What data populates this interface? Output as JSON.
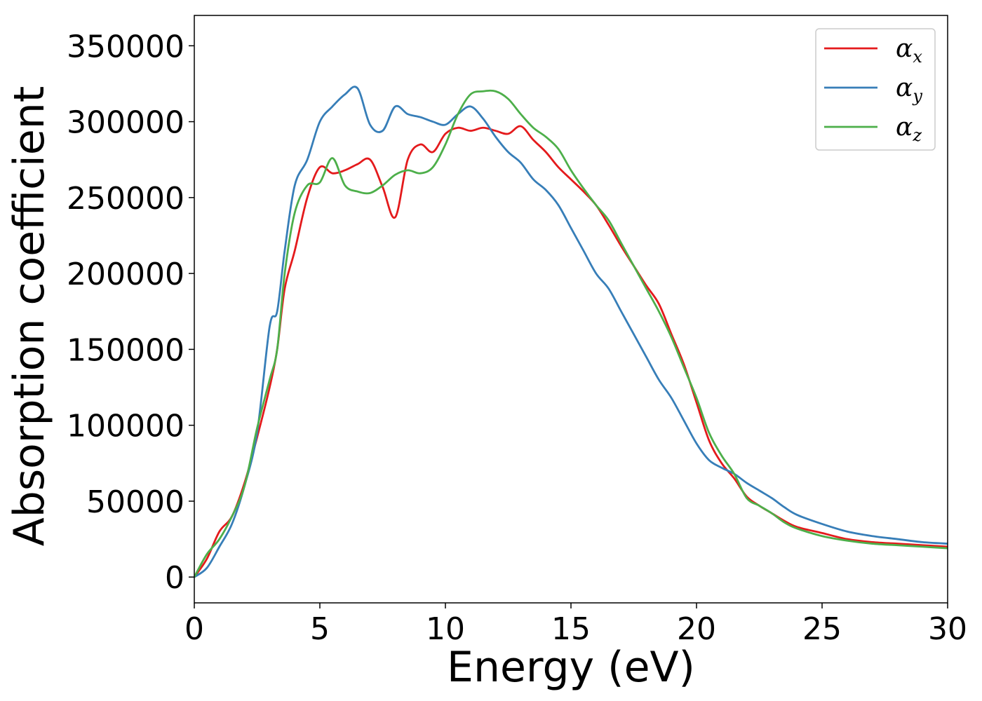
{
  "chart_data": {
    "type": "line",
    "title": "",
    "xlabel": "Energy (eV)",
    "ylabel": "Absorption coefficient",
    "xlim": [
      0,
      30
    ],
    "ylim": [
      -17000,
      370000
    ],
    "xticks": [
      0,
      5,
      10,
      15,
      20,
      25,
      30
    ],
    "xtick_labels": [
      "0",
      "5",
      "10",
      "15",
      "20",
      "25",
      "30"
    ],
    "yticks": [
      0,
      50000,
      100000,
      150000,
      200000,
      250000,
      300000,
      350000
    ],
    "ytick_labels": [
      "0",
      "50000",
      "100000",
      "150000",
      "200000",
      "250000",
      "300000",
      "350000"
    ],
    "grid": false,
    "legend_position": "top-right",
    "x": [
      0,
      0.5,
      1,
      1.5,
      2,
      2.5,
      3,
      3.3,
      3.6,
      4,
      4.5,
      5,
      5.5,
      6,
      6.5,
      7,
      7.5,
      8,
      8.5,
      9,
      9.5,
      10,
      10.5,
      11,
      11.5,
      12,
      12.5,
      13,
      13.5,
      14,
      14.5,
      15,
      15.5,
      16,
      16.5,
      17,
      17.5,
      18,
      18.5,
      19,
      19.5,
      20,
      20.5,
      21,
      21.5,
      22,
      22.5,
      23,
      23.5,
      24,
      25,
      26,
      27,
      28,
      29,
      30
    ],
    "series": [
      {
        "name": "α",
        "subscript": "x",
        "color": "#e41a1c",
        "values": [
          0,
          12000,
          30000,
          40000,
          62000,
          92000,
          125000,
          150000,
          190000,
          215000,
          250000,
          270000,
          266000,
          268000,
          272000,
          275000,
          257000,
          237000,
          275000,
          285000,
          280000,
          292000,
          296000,
          294000,
          296000,
          294000,
          292000,
          297000,
          288000,
          280000,
          270000,
          262000,
          254000,
          245000,
          232000,
          218000,
          205000,
          192000,
          180000,
          160000,
          140000,
          115000,
          90000,
          75000,
          65000,
          53000,
          47000,
          42000,
          37000,
          33000,
          29000,
          25000,
          23000,
          22000,
          21000,
          20000
        ]
      },
      {
        "name": "α",
        "subscript": "y",
        "color": "#377eb8",
        "values": [
          0,
          6000,
          20000,
          35000,
          60000,
          95000,
          165000,
          175000,
          215000,
          258000,
          275000,
          300000,
          310000,
          318000,
          322000,
          298000,
          294000,
          310000,
          305000,
          303000,
          300000,
          298000,
          305000,
          310000,
          302000,
          290000,
          280000,
          273000,
          262000,
          255000,
          245000,
          230000,
          215000,
          200000,
          190000,
          175000,
          160000,
          145000,
          130000,
          118000,
          103000,
          88000,
          77000,
          72000,
          68000,
          62000,
          57000,
          52000,
          46000,
          41000,
          35000,
          30000,
          27000,
          25000,
          23000,
          22000
        ]
      },
      {
        "name": "α",
        "subscript": "z",
        "color": "#4daf4a",
        "values": [
          0,
          15000,
          25000,
          40000,
          60000,
          98000,
          130000,
          150000,
          200000,
          240000,
          258000,
          260000,
          276000,
          258000,
          254000,
          253000,
          258000,
          265000,
          268000,
          266000,
          270000,
          285000,
          305000,
          318000,
          320000,
          320000,
          315000,
          305000,
          296000,
          290000,
          282000,
          268000,
          256000,
          245000,
          235000,
          220000,
          205000,
          190000,
          175000,
          158000,
          138000,
          118000,
          95000,
          80000,
          68000,
          52000,
          47000,
          42000,
          36000,
          32000,
          27000,
          24000,
          22000,
          21000,
          20000,
          19000
        ]
      }
    ]
  }
}
